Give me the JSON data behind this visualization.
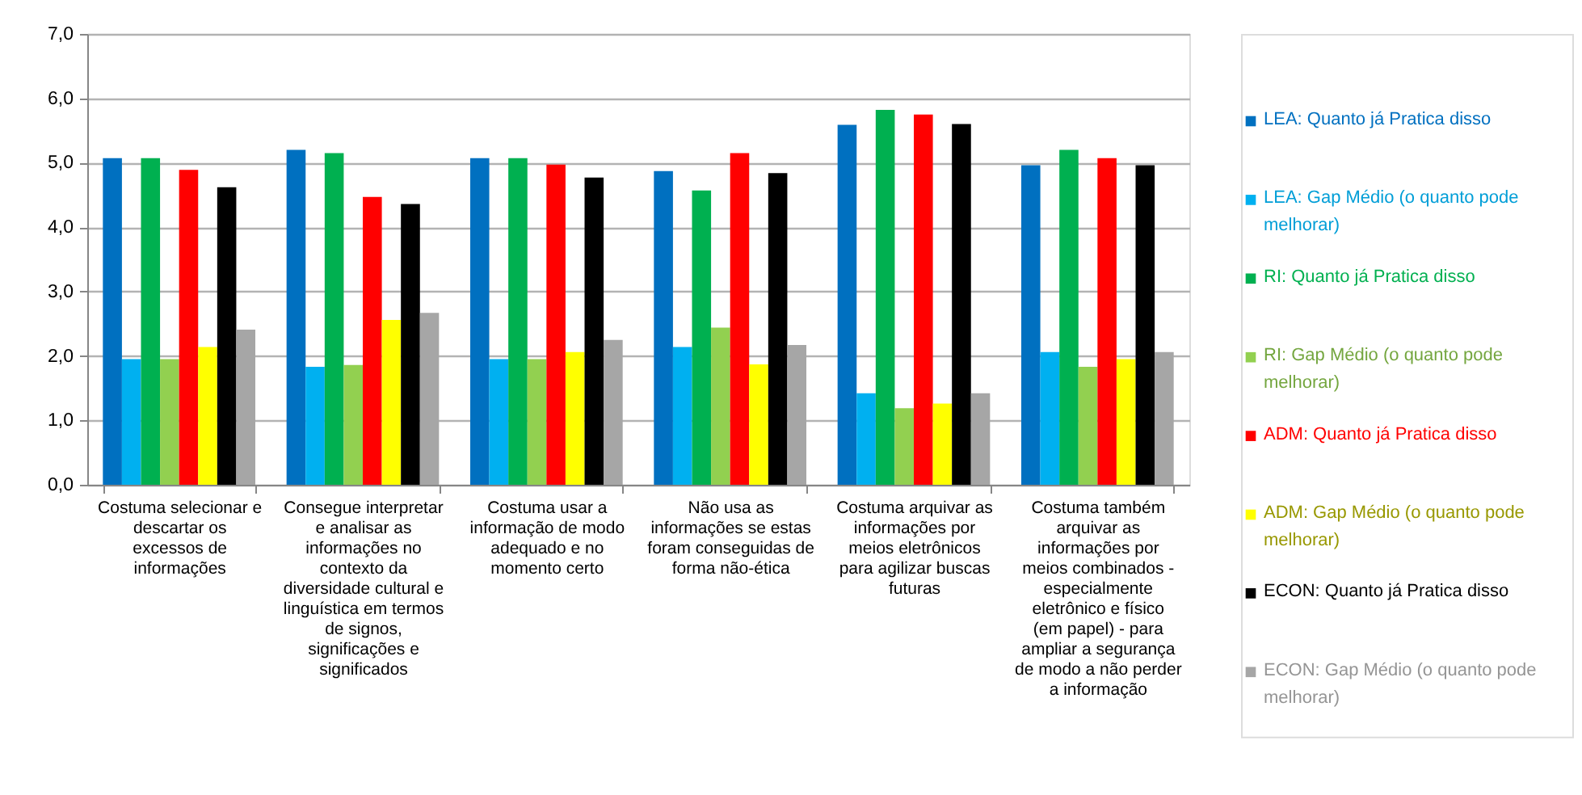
{
  "chart_data": {
    "type": "bar",
    "categories": [
      "Costuma selecionar e descartar os excessos de informações",
      "Consegue interpretar e analisar as informações no contexto da diversidade cultural e linguística em termos de signos, significações e significados",
      "Costuma usar a informação de modo adequado e no momento certo",
      "Não usa as informações se estas foram conseguidas de forma não-ética",
      "Costuma arquivar as informações por meios eletrônicos para agilizar buscas futuras",
      "Costuma também arquivar as informações por meios combinados - especialmente eletrônico e físico (em papel) - para ampliar a segurança de modo a não perder a informação"
    ],
    "series": [
      {
        "name": "LEA: Quanto já Pratica disso",
        "color": "#0070c0",
        "values": [
          5.07,
          5.2,
          5.07,
          4.87,
          5.59,
          4.96
        ]
      },
      {
        "name": "LEA: Gap Médio (o quanto pode melhorar)",
        "color": "#00b0f0",
        "values": [
          1.95,
          1.83,
          1.95,
          2.14,
          1.42,
          2.06
        ]
      },
      {
        "name": "RI: Quanto já Pratica disso",
        "color": "#00b050",
        "values": [
          5.07,
          5.15,
          5.07,
          4.57,
          5.82,
          5.2
        ]
      },
      {
        "name": "RI: Gap Médio (o quanto pode melhorar)",
        "color": "#92d050",
        "values": [
          1.95,
          1.86,
          1.95,
          2.44,
          1.19,
          1.83
        ]
      },
      {
        "name": "ADM: Quanto já Pratica disso",
        "color": "#ff0000",
        "values": [
          4.89,
          4.47,
          4.97,
          5.15,
          5.75,
          5.07
        ]
      },
      {
        "name": "ADM: Gap Médio (o quanto pode melhorar)",
        "color": "#ffff00",
        "values": [
          2.14,
          2.56,
          2.06,
          1.87,
          1.26,
          1.95
        ]
      },
      {
        "name": "ECON: Quanto já Pratica disso",
        "color": "#000000",
        "values": [
          4.62,
          4.36,
          4.77,
          4.84,
          5.6,
          4.96
        ]
      },
      {
        "name": "ECON: Gap Médio (o quanto pode melhorar)",
        "color": "#a6a6a6",
        "values": [
          2.41,
          2.67,
          2.25,
          2.17,
          1.42,
          2.06
        ]
      }
    ],
    "ylim": [
      0,
      7
    ],
    "yticks": [
      {
        "value": 0,
        "label": "0,0"
      },
      {
        "value": 1,
        "label": "1,0"
      },
      {
        "value": 2,
        "label": "2,0"
      },
      {
        "value": 3,
        "label": "3,0"
      },
      {
        "value": 4,
        "label": "4,0"
      },
      {
        "value": 5,
        "label": "5,0"
      },
      {
        "value": 6,
        "label": "6,0"
      },
      {
        "value": 7,
        "label": "7,0"
      }
    ],
    "grid": "y",
    "legend": "right"
  }
}
